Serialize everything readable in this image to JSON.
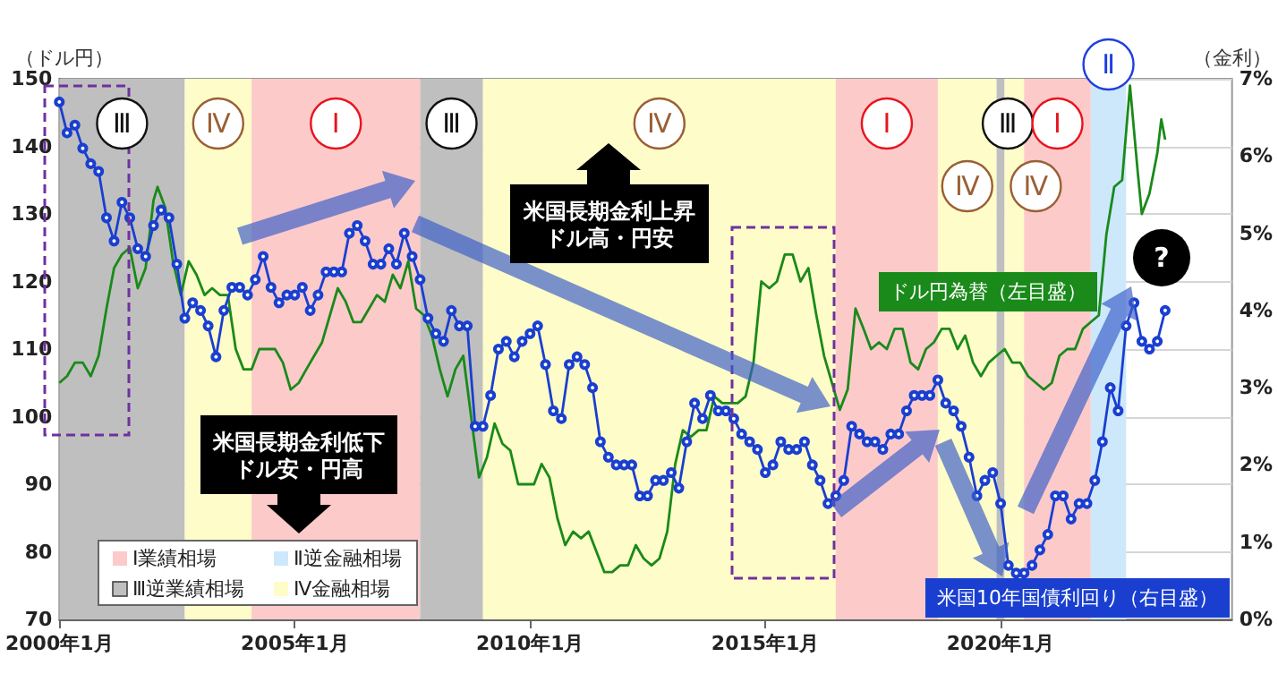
{
  "chart_data": {
    "type": "line",
    "ylabel": "（ドル円）",
    "y2label": "（金利）",
    "xlim": [
      "2000-01",
      "2024-12"
    ],
    "xticks": [
      {
        "value": "2000-01",
        "label": "2000年1月"
      },
      {
        "value": "2005-01",
        "label": "2005年1月"
      },
      {
        "value": "2010-01",
        "label": "2010年1月"
      },
      {
        "value": "2015-01",
        "label": "2015年1月"
      },
      {
        "value": "2020-01",
        "label": "2020年1月"
      }
    ],
    "ylim": [
      70,
      150
    ],
    "yticks": [
      70,
      80,
      90,
      100,
      110,
      120,
      130,
      140,
      150
    ],
    "y2lim": [
      0,
      7
    ],
    "y2ticks": [
      {
        "value": 0,
        "label": "0%"
      },
      {
        "value": 1,
        "label": "1%"
      },
      {
        "value": 2,
        "label": "2%"
      },
      {
        "value": 3,
        "label": "3%"
      },
      {
        "value": 4,
        "label": "4%"
      },
      {
        "value": 5,
        "label": "5%"
      },
      {
        "value": 6,
        "label": "6%"
      },
      {
        "value": 7,
        "label": "7%"
      }
    ],
    "grid": "y",
    "series": [
      {
        "name": "ドル円為替（左目盛）",
        "color": "#1a8a1a",
        "x": [
          "2000-01",
          "2000-03",
          "2000-05",
          "2000-07",
          "2000-09",
          "2000-11",
          "2001-01",
          "2001-03",
          "2001-05",
          "2001-07",
          "2001-09",
          "2001-11",
          "2002-01",
          "2002-02",
          "2002-04",
          "2002-06",
          "2002-08",
          "2002-10",
          "2002-12",
          "2003-02",
          "2003-04",
          "2003-06",
          "2003-08",
          "2003-10",
          "2003-12",
          "2004-02",
          "2004-04",
          "2004-06",
          "2004-08",
          "2004-10",
          "2004-12",
          "2005-02",
          "2005-04",
          "2005-06",
          "2005-08",
          "2005-10",
          "2005-12",
          "2006-02",
          "2006-04",
          "2006-06",
          "2006-08",
          "2006-10",
          "2006-12",
          "2007-02",
          "2007-04",
          "2007-06",
          "2007-08",
          "2007-10",
          "2007-12",
          "2008-02",
          "2008-04",
          "2008-06",
          "2008-08",
          "2008-10",
          "2008-12",
          "2009-02",
          "2009-04",
          "2009-06",
          "2009-08",
          "2009-10",
          "2009-12",
          "2010-02",
          "2010-04",
          "2010-06",
          "2010-08",
          "2010-10",
          "2010-12",
          "2011-02",
          "2011-04",
          "2011-06",
          "2011-08",
          "2011-10",
          "2011-12",
          "2012-02",
          "2012-04",
          "2012-06",
          "2012-08",
          "2012-10",
          "2012-12",
          "2013-02",
          "2013-04",
          "2013-06",
          "2013-08",
          "2013-10",
          "2013-12",
          "2014-02",
          "2014-04",
          "2014-06",
          "2014-08",
          "2014-10",
          "2014-12",
          "2015-02",
          "2015-04",
          "2015-06",
          "2015-08",
          "2015-10",
          "2015-12",
          "2016-02",
          "2016-04",
          "2016-06",
          "2016-08",
          "2016-10",
          "2016-12",
          "2017-02",
          "2017-04",
          "2017-06",
          "2017-08",
          "2017-10",
          "2017-12",
          "2018-02",
          "2018-04",
          "2018-06",
          "2018-08",
          "2018-10",
          "2018-12",
          "2019-02",
          "2019-04",
          "2019-06",
          "2019-08",
          "2019-10",
          "2019-12",
          "2020-02",
          "2020-04",
          "2020-06",
          "2020-08",
          "2020-10",
          "2020-12",
          "2021-02",
          "2021-04",
          "2021-06",
          "2021-08",
          "2021-10",
          "2021-12",
          "2022-02",
          "2022-04",
          "2022-06",
          "2022-08",
          "2022-10",
          "2022-12",
          "2023-01",
          "2023-03",
          "2023-05",
          "2023-06",
          "2023-07"
        ],
        "values": [
          105,
          106,
          108,
          108,
          106,
          109,
          116,
          122,
          124,
          125,
          119,
          122,
          132,
          134,
          131,
          123,
          118,
          123,
          121,
          118,
          119,
          118,
          118,
          110,
          107,
          107,
          110,
          110,
          110,
          108,
          104,
          105,
          107,
          109,
          111,
          115,
          119,
          117,
          114,
          114,
          116,
          118,
          117,
          121,
          119,
          123,
          116,
          115,
          112,
          107,
          103,
          107,
          109,
          100,
          91,
          94,
          99,
          96,
          95,
          90,
          90,
          90,
          93,
          91,
          85,
          81,
          83,
          82,
          83,
          80,
          77,
          77,
          78,
          78,
          81,
          79,
          78,
          79,
          83,
          93,
          98,
          97,
          98,
          98,
          103,
          102,
          102,
          102,
          103,
          108,
          120,
          119,
          120,
          124,
          124,
          120,
          122,
          115,
          109,
          105,
          101,
          104,
          116,
          113,
          110,
          111,
          110,
          113,
          113,
          108,
          107,
          110,
          111,
          113,
          113,
          110,
          112,
          108,
          106,
          108,
          109,
          110,
          108,
          108,
          106,
          105,
          104,
          105,
          109,
          110,
          110,
          113,
          114,
          115,
          127,
          134,
          135,
          149,
          136,
          130,
          133,
          139,
          144,
          141
        ]
      },
      {
        "name": "米国10年国債利回り（右目盛）",
        "color": "#1a3fd0",
        "axis": "y2",
        "marker": "circle",
        "x": [
          "2000-01",
          "2000-03",
          "2000-05",
          "2000-07",
          "2000-09",
          "2000-11",
          "2001-01",
          "2001-03",
          "2001-05",
          "2001-07",
          "2001-09",
          "2001-11",
          "2002-01",
          "2002-03",
          "2002-05",
          "2002-07",
          "2002-09",
          "2002-11",
          "2003-01",
          "2003-03",
          "2003-05",
          "2003-07",
          "2003-09",
          "2003-11",
          "2004-01",
          "2004-03",
          "2004-05",
          "2004-07",
          "2004-09",
          "2004-11",
          "2005-01",
          "2005-03",
          "2005-05",
          "2005-07",
          "2005-09",
          "2005-11",
          "2006-01",
          "2006-03",
          "2006-05",
          "2006-07",
          "2006-09",
          "2006-11",
          "2007-01",
          "2007-03",
          "2007-05",
          "2007-07",
          "2007-09",
          "2007-11",
          "2008-01",
          "2008-03",
          "2008-05",
          "2008-07",
          "2008-09",
          "2008-11",
          "2009-01",
          "2009-03",
          "2009-05",
          "2009-07",
          "2009-09",
          "2009-11",
          "2010-01",
          "2010-03",
          "2010-05",
          "2010-07",
          "2010-09",
          "2010-11",
          "2011-01",
          "2011-03",
          "2011-05",
          "2011-07",
          "2011-09",
          "2011-11",
          "2012-01",
          "2012-03",
          "2012-05",
          "2012-07",
          "2012-09",
          "2012-11",
          "2013-01",
          "2013-03",
          "2013-05",
          "2013-07",
          "2013-09",
          "2013-11",
          "2014-01",
          "2014-03",
          "2014-05",
          "2014-07",
          "2014-09",
          "2014-11",
          "2015-01",
          "2015-03",
          "2015-05",
          "2015-07",
          "2015-09",
          "2015-11",
          "2016-01",
          "2016-03",
          "2016-05",
          "2016-07",
          "2016-09",
          "2016-11",
          "2017-01",
          "2017-03",
          "2017-05",
          "2017-07",
          "2017-09",
          "2017-11",
          "2018-01",
          "2018-03",
          "2018-05",
          "2018-07",
          "2018-09",
          "2018-11",
          "2019-01",
          "2019-03",
          "2019-05",
          "2019-07",
          "2019-09",
          "2019-11",
          "2020-01",
          "2020-03",
          "2020-05",
          "2020-07",
          "2020-09",
          "2020-11",
          "2021-01",
          "2021-03",
          "2021-05",
          "2021-07",
          "2021-09",
          "2021-11",
          "2022-01",
          "2022-03",
          "2022-05",
          "2022-07",
          "2022-09",
          "2022-11",
          "2023-01",
          "2023-03",
          "2023-05",
          "2023-07"
        ],
        "values": [
          6.7,
          6.3,
          6.4,
          6.1,
          5.9,
          5.8,
          5.2,
          4.9,
          5.4,
          5.2,
          4.8,
          4.7,
          5.1,
          5.3,
          5.2,
          4.6,
          3.9,
          4.1,
          4.0,
          3.8,
          3.4,
          4.0,
          4.3,
          4.3,
          4.2,
          4.4,
          4.7,
          4.3,
          4.1,
          4.2,
          4.2,
          4.3,
          4.0,
          4.2,
          4.5,
          4.5,
          4.5,
          5.0,
          5.1,
          4.9,
          4.6,
          4.6,
          4.8,
          4.6,
          5.0,
          4.7,
          4.4,
          3.9,
          3.7,
          3.6,
          4.0,
          3.8,
          3.8,
          2.5,
          2.5,
          2.9,
          3.5,
          3.6,
          3.4,
          3.6,
          3.7,
          3.8,
          3.3,
          2.7,
          2.6,
          3.3,
          3.4,
          3.3,
          3.0,
          2.3,
          2.1,
          2.0,
          2.0,
          2.0,
          1.6,
          1.6,
          1.8,
          1.8,
          1.9,
          1.7,
          2.3,
          2.8,
          2.6,
          2.9,
          2.7,
          2.7,
          2.6,
          2.4,
          2.3,
          2.2,
          1.9,
          2.0,
          2.3,
          2.2,
          2.2,
          2.3,
          2.0,
          1.8,
          1.5,
          1.6,
          1.8,
          2.5,
          2.4,
          2.3,
          2.3,
          2.2,
          2.4,
          2.4,
          2.7,
          2.9,
          2.9,
          2.9,
          3.1,
          2.8,
          2.7,
          2.5,
          2.1,
          1.6,
          1.8,
          1.9,
          1.5,
          0.7,
          0.6,
          0.6,
          0.7,
          0.9,
          1.1,
          1.6,
          1.6,
          1.3,
          1.5,
          1.5,
          1.8,
          2.3,
          3.0,
          2.7,
          3.8,
          4.1,
          3.6,
          3.5,
          3.6,
          4.0
        ]
      }
    ],
    "bands": [
      {
        "axis": "x",
        "from": "2004-02",
        "to": "2007-09",
        "label": "Ⅰ",
        "color": "#fdcaca"
      },
      {
        "axis": "x",
        "from": "2021-12",
        "to": "2022-09",
        "label": "Ⅱ",
        "color": "#cde8fb"
      },
      {
        "axis": "x",
        "from": "2000-01",
        "to": "2002-09",
        "label": "Ⅲ",
        "color": "#bfbfbf"
      },
      {
        "axis": "x",
        "from": "2002-09",
        "to": "2004-02",
        "label": "Ⅳ",
        "color": "#fefcc8"
      },
      {
        "axis": "x",
        "from": "2007-09",
        "to": "2009-01",
        "label": "Ⅲ",
        "color": "#bfbfbf"
      },
      {
        "axis": "x",
        "from": "2009-01",
        "to": "2016-07",
        "label": "Ⅳ",
        "color": "#fefcc8"
      },
      {
        "axis": "x",
        "from": "2016-07",
        "to": "2018-09",
        "label": "Ⅰ",
        "color": "#fdcaca"
      },
      {
        "axis": "x",
        "from": "2018-09",
        "to": "2019-12",
        "label": "Ⅳ",
        "color": "#fefcc8"
      },
      {
        "axis": "x",
        "from": "2019-12",
        "to": "2020-02",
        "label": "Ⅲ",
        "color": "#bfbfbf"
      },
      {
        "axis": "x",
        "from": "2020-02",
        "to": "2020-07",
        "label": "Ⅳ",
        "color": "#fefcc8"
      },
      {
        "axis": "x",
        "from": "2020-07",
        "to": "2021-12",
        "label": "Ⅰ",
        "color": "#fdcaca"
      }
    ],
    "annotations": [
      "Ⅰ業績相場",
      "Ⅱ逆金融相場",
      "Ⅲ逆業績相場",
      "Ⅳ金融相場",
      "米国長期金利低下",
      "ドル安・円高",
      "米国長期金利上昇",
      "ドル高・円安",
      "?"
    ]
  }
}
